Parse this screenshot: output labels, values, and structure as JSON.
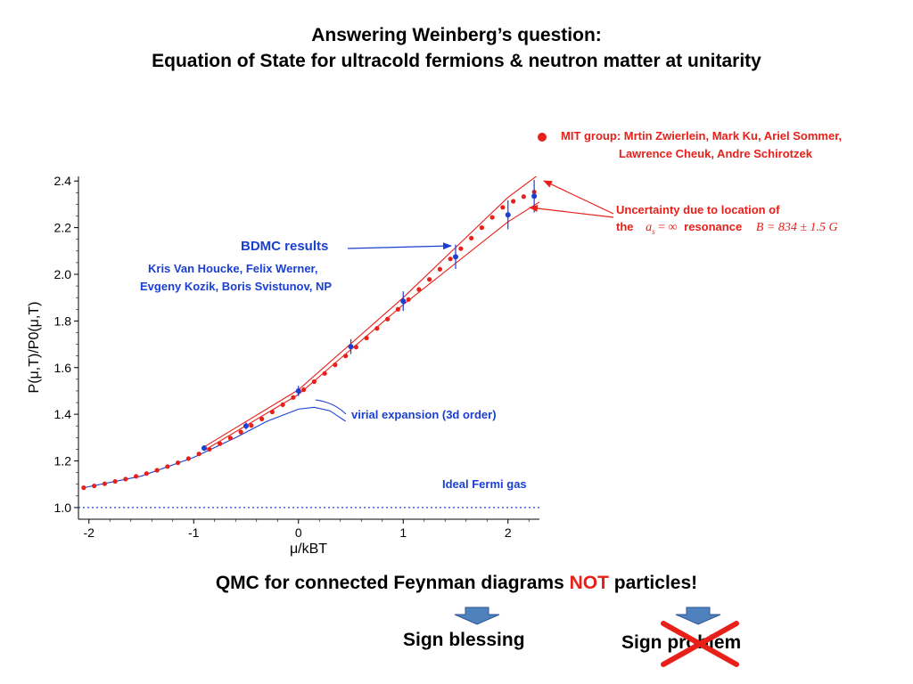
{
  "slide": {
    "title_line1": "Answering Weinberg’s question:",
    "title_line2": "Equation of State for ultracold fermions & neutron matter at unitarity",
    "mit_group_line1": "MIT group: Mrtin Zwierlein,  Mark Ku, Ariel Sommer,",
    "mit_group_line2": "Lawrence Cheuk, Andre Schirotzek",
    "uncertainty_line1": "Uncertainty due to location  of",
    "uncertainty_the": "the",
    "uncertainty_as": "a",
    "uncertainty_as_sub": "s",
    "uncertainty_eq_inf": "= ∞",
    "uncertainty_resonance": "resonance",
    "uncertainty_B": "B = 834 ± 1.5 G",
    "bdmc_title": "BDMC results",
    "bdmc_authors1": "Kris Van Houcke, Felix Werner,",
    "bdmc_authors2": "Evgeny Kozik, Boris Svistunov, NP",
    "virial_label": "virial expansion (3d order)",
    "fermi_label": "Ideal Fermi gas",
    "qmc_pre": "QMC for connected Feynman diagrams ",
    "qmc_not": "NOT",
    "qmc_post": " particles!",
    "sign_blessing": "Sign blessing",
    "sign_problem": "Sign problem",
    "colors": {
      "red": "#e8201a",
      "blue": "#1a3fd1",
      "arrow_fill": "#4f81bd",
      "arrow_stroke": "#2f5597"
    }
  },
  "chart_data": {
    "type": "scatter",
    "xlabel": "μ/kBT",
    "ylabel": "P(μ,T)/P0(μ,T)",
    "xlim": [
      -2.1,
      2.3
    ],
    "ylim": [
      0.95,
      2.42
    ],
    "x_ticks": [
      "-2",
      "-1",
      "0",
      "1",
      "2"
    ],
    "y_ticks": [
      "1.0",
      "1.2",
      "1.4",
      "1.6",
      "1.8",
      "2.0",
      "2.2",
      "2.4"
    ],
    "series": [
      {
        "name": "MIT group: Mrtin Zwierlein,  Mark Ku, Ariel Sommer, Lawrence Cheuk, Andre Schirotzek",
        "kind": "points",
        "x": [
          -2.05,
          -1.95,
          -1.85,
          -1.75,
          -1.65,
          -1.55,
          -1.45,
          -1.35,
          -1.25,
          -1.15,
          -1.05,
          -0.95,
          -0.85,
          -0.75,
          -0.65,
          -0.55,
          -0.45,
          -0.35,
          -0.25,
          -0.15,
          -0.05,
          0.05,
          0.15,
          0.25,
          0.35,
          0.45,
          0.55,
          0.65,
          0.75,
          0.85,
          0.95,
          1.05,
          1.15,
          1.25,
          1.35,
          1.45,
          1.55,
          1.65,
          1.75,
          1.85,
          1.95,
          2.05,
          2.15,
          2.25
        ],
        "y": [
          1.085,
          1.093,
          1.102,
          1.112,
          1.122,
          1.134,
          1.146,
          1.16,
          1.176,
          1.192,
          1.21,
          1.23,
          1.25,
          1.274,
          1.298,
          1.324,
          1.352,
          1.38,
          1.41,
          1.441,
          1.472,
          1.505,
          1.54,
          1.575,
          1.612,
          1.65,
          1.688,
          1.727,
          1.768,
          1.808,
          1.85,
          1.892,
          1.935,
          1.978,
          2.022,
          2.066,
          2.11,
          2.155,
          2.2,
          2.244,
          2.287,
          2.313,
          2.333,
          2.353
        ]
      },
      {
        "name": "BDMC results",
        "kind": "points_with_errorbars",
        "x": [
          -0.9,
          -0.5,
          0.0,
          0.5,
          1.0,
          1.5,
          2.0,
          2.25
        ],
        "y": [
          1.255,
          1.35,
          1.5,
          1.69,
          1.885,
          2.075,
          2.255,
          2.335
        ],
        "err": [
          0.012,
          0.015,
          0.022,
          0.032,
          0.042,
          0.052,
          0.062,
          0.07
        ]
      },
      {
        "name": "virial expansion (3d order)",
        "kind": "line",
        "x": [
          -2.05,
          -1.5,
          -1.0,
          -0.6,
          -0.3,
          0.0,
          0.15,
          0.3,
          0.45
        ],
        "y": [
          1.085,
          1.135,
          1.215,
          1.3,
          1.37,
          1.422,
          1.43,
          1.415,
          1.37
        ]
      },
      {
        "name": "Ideal Fermi gas",
        "kind": "line",
        "x": [
          -2.1,
          2.3
        ],
        "y": [
          1.0,
          1.0
        ]
      },
      {
        "name": "upper uncertainty bound",
        "kind": "line",
        "x": [
          -0.9,
          0.0,
          1.0,
          2.0,
          2.3
        ],
        "y": [
          1.26,
          1.505,
          1.9,
          2.33,
          2.43
        ]
      },
      {
        "name": "lower uncertainty bound",
        "kind": "line",
        "x": [
          -0.9,
          0.0,
          1.0,
          2.0,
          2.3
        ],
        "y": [
          1.245,
          1.485,
          1.87,
          2.225,
          2.31
        ]
      }
    ]
  }
}
